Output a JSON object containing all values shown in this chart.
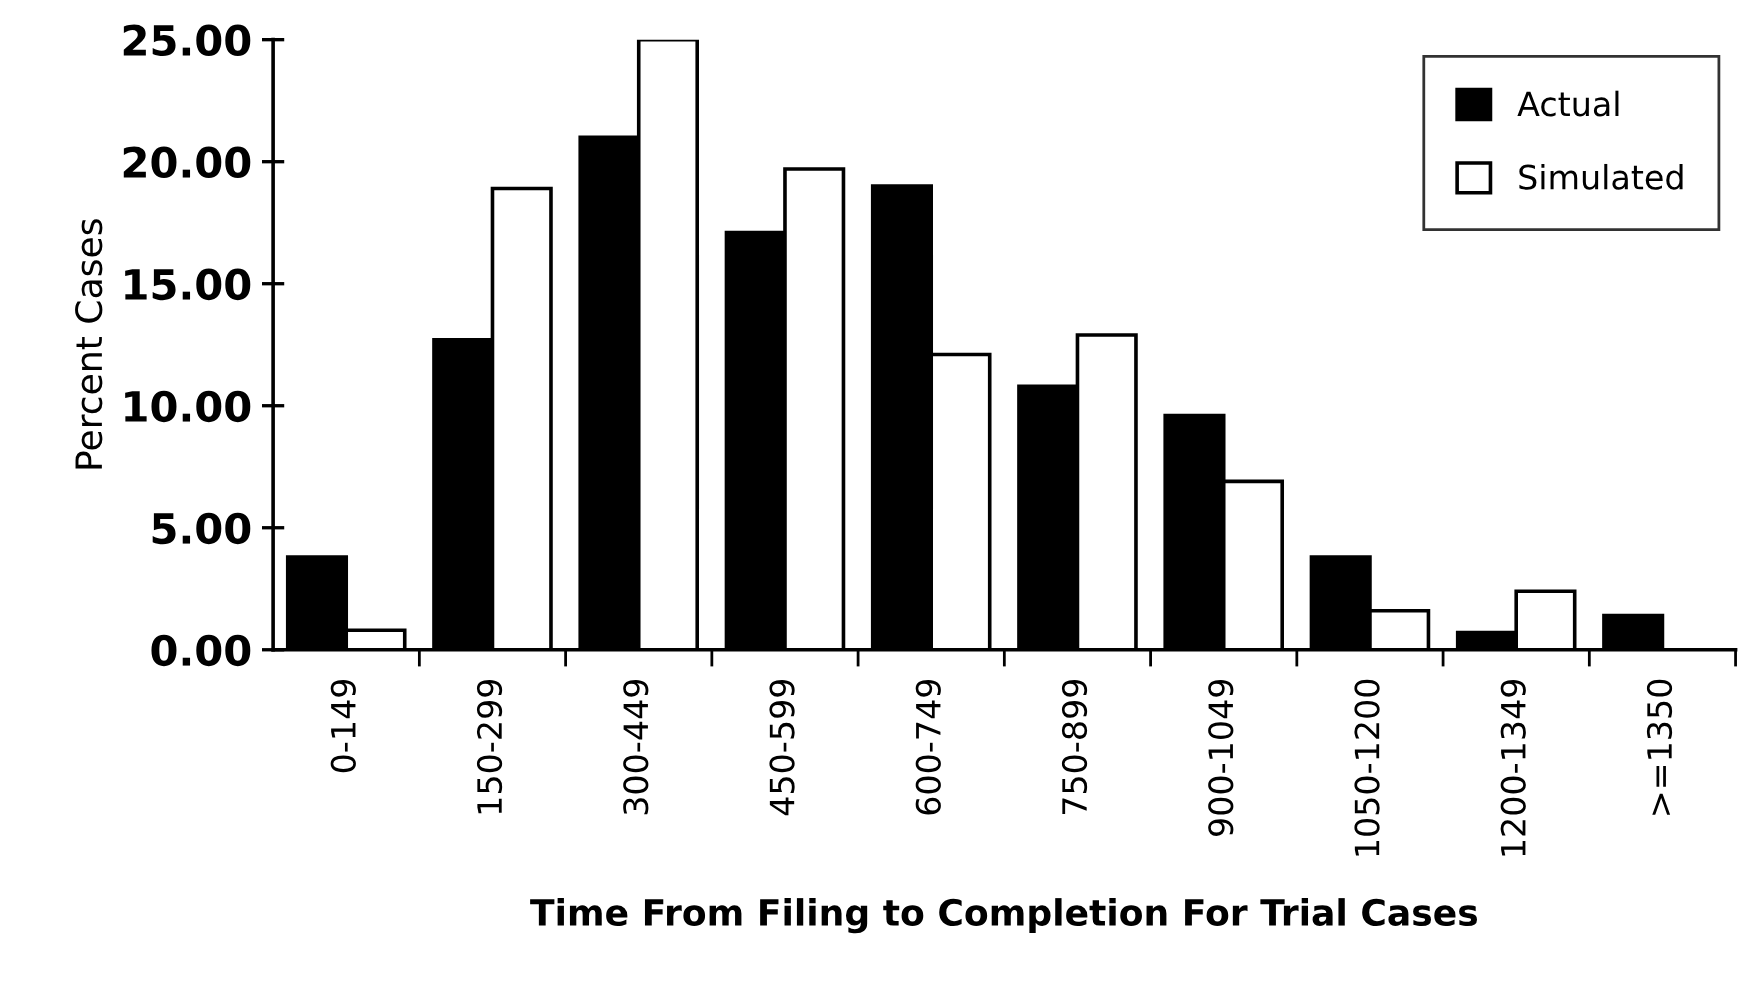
{
  "chart_data": {
    "type": "bar",
    "xlabel": "Time From Filing to Completion For Trial Cases",
    "ylabel": "Percent Cases",
    "categories": [
      "0-149",
      "150-299",
      "300-449",
      "450-599",
      "600-749",
      "750-899",
      "900-1049",
      "1050-1200",
      "1200-1349",
      ">=1350"
    ],
    "series": [
      {
        "name": "Actual",
        "color": "#000000",
        "values": [
          3.8,
          12.7,
          21.0,
          17.1,
          19.0,
          10.8,
          9.6,
          3.8,
          0.7,
          1.4
        ]
      },
      {
        "name": "Simulated",
        "color": "#ffffff",
        "values": [
          0.8,
          18.9,
          25.0,
          19.7,
          12.1,
          12.9,
          6.9,
          1.6,
          2.4,
          null
        ]
      }
    ],
    "ylim": [
      0,
      25
    ],
    "yticks": [
      {
        "value": 0,
        "label": "0.00"
      },
      {
        "value": 5,
        "label": "5.00"
      },
      {
        "value": 10,
        "label": "10.00"
      },
      {
        "value": 15,
        "label": "15.00"
      },
      {
        "value": 20,
        "label": "20.00"
      },
      {
        "value": 25,
        "label": "25.00"
      }
    ],
    "grid": false,
    "legend": "top right"
  }
}
